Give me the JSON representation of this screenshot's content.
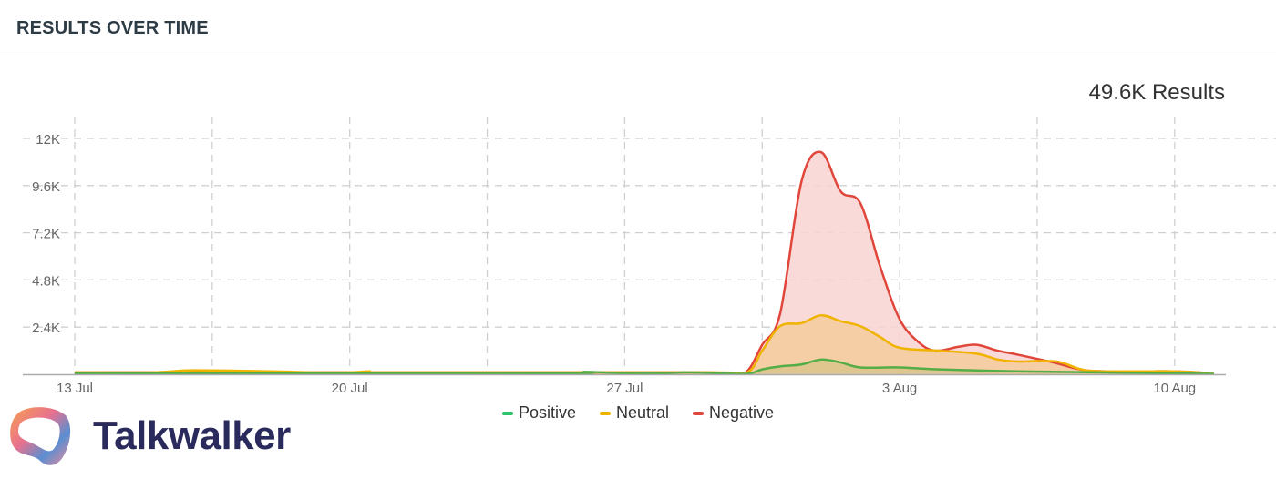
{
  "header": {
    "title": "RESULTS OVER TIME"
  },
  "total_results": "49.6K Results",
  "logo": {
    "text": "Talkwalker"
  },
  "chart_data": {
    "type": "area",
    "title": "",
    "xlabel": "",
    "ylabel": "",
    "x_ticks": [
      "13 Jul",
      "20 Jul",
      "27 Jul",
      "3 Aug",
      "10 Aug"
    ],
    "y_ticks": [
      "2.4K",
      "4.8K",
      "7.2K",
      "9.6K",
      "12K"
    ],
    "y_tick_values": [
      2400,
      4800,
      7200,
      9600,
      12000
    ],
    "ylim": [
      0,
      12000
    ],
    "xlim": [
      "Jul 13 00:00",
      "Aug 11 12:00"
    ],
    "grid": true,
    "legend_position": "bottom",
    "series": [
      {
        "name": "Negative",
        "color": "#e1463b",
        "fill": "#f8d3d1",
        "points": [
          [
            "Jul 13 00:00",
            100
          ],
          [
            "Jul 15 00:00",
            100
          ],
          [
            "Jul 16 00:00",
            150
          ],
          [
            "Jul 18 00:00",
            100
          ],
          [
            "Jul 22 00:00",
            100
          ],
          [
            "Jul 26 00:00",
            100
          ],
          [
            "Jul 29 00:00",
            100
          ],
          [
            "Jul 29 12:00",
            60
          ],
          [
            "Jul 30 02:00",
            100
          ],
          [
            "Jul 30 12:00",
            1500
          ],
          [
            "Jul 30 23:00",
            3100
          ],
          [
            "Jul 31 12:00",
            9800
          ],
          [
            "Aug 1 00:00",
            11300
          ],
          [
            "Aug 1 12:00",
            9300
          ],
          [
            "Aug 2 00:00",
            8700
          ],
          [
            "Aug 2 12:00",
            5500
          ],
          [
            "Aug 3 00:00",
            2800
          ],
          [
            "Aug 3 12:00",
            1600
          ],
          [
            "Aug 3 22:00",
            1200
          ],
          [
            "Aug 4 12:00",
            1400
          ],
          [
            "Aug 4 23:00",
            1500
          ],
          [
            "Aug 5 12:00",
            1200
          ],
          [
            "Aug 6 00:00",
            1000
          ],
          [
            "Aug 6 22:00",
            600
          ],
          [
            "Aug 7 18:00",
            200
          ],
          [
            "Aug 9 00:00",
            150
          ],
          [
            "Aug 10 00:00",
            150
          ],
          [
            "Aug 11 00:00",
            50
          ]
        ]
      },
      {
        "name": "Neutral",
        "color": "#efb300",
        "fill": "#f6cb9c",
        "points": [
          [
            "Jul 13 00:00",
            100
          ],
          [
            "Jul 15 00:00",
            100
          ],
          [
            "Jul 16 00:00",
            200
          ],
          [
            "Jul 18 00:00",
            150
          ],
          [
            "Jul 19 00:00",
            100
          ],
          [
            "Jul 20 00:00",
            100
          ],
          [
            "Jul 20 12:00",
            150
          ],
          [
            "Jul 21 00:00",
            100
          ],
          [
            "Jul 29 00:00",
            100
          ],
          [
            "Jul 30 02:00",
            60
          ],
          [
            "Jul 30 12:00",
            1200
          ],
          [
            "Jul 30 23:00",
            2450
          ],
          [
            "Jul 31 12:00",
            2600
          ],
          [
            "Aug 1 00:00",
            3000
          ],
          [
            "Aug 1 12:00",
            2700
          ],
          [
            "Aug 2 00:00",
            2450
          ],
          [
            "Aug 2 12:00",
            1900
          ],
          [
            "Aug 3 00:00",
            1350
          ],
          [
            "Aug 4 00:00",
            1200
          ],
          [
            "Aug 4 23:00",
            1050
          ],
          [
            "Aug 5 12:00",
            750
          ],
          [
            "Aug 6 00:00",
            650
          ],
          [
            "Aug 7 00:00",
            650
          ],
          [
            "Aug 7 18:00",
            200
          ],
          [
            "Aug 9 00:00",
            150
          ],
          [
            "Aug 10 00:00",
            150
          ],
          [
            "Aug 11 00:00",
            50
          ]
        ]
      },
      {
        "name": "Positive",
        "color": "#55ad47",
        "fill": "#d9c48a",
        "points": [
          [
            "Jul 13 00:00",
            50
          ],
          [
            "Jul 25 00:00",
            50
          ],
          [
            "Jul 26 00:00",
            120
          ],
          [
            "Jul 27 00:00",
            50
          ],
          [
            "Jul 28 00:00",
            50
          ],
          [
            "Jul 28 12:00",
            100
          ],
          [
            "Jul 29 00:00",
            80
          ],
          [
            "Jul 30 02:00",
            20
          ],
          [
            "Jul 30 12:00",
            250
          ],
          [
            "Jul 30 23:00",
            400
          ],
          [
            "Jul 31 12:00",
            500
          ],
          [
            "Aug 1 00:00",
            750
          ],
          [
            "Aug 1 12:00",
            600
          ],
          [
            "Aug 2 00:00",
            350
          ],
          [
            "Aug 3 00:00",
            350
          ],
          [
            "Aug 4 00:00",
            250
          ],
          [
            "Aug 6 00:00",
            150
          ],
          [
            "Aug 8 00:00",
            100
          ],
          [
            "Aug 11 00:00",
            20
          ]
        ]
      }
    ]
  },
  "legend": [
    {
      "label": "Positive",
      "color": "#2ec46b"
    },
    {
      "label": "Neutral",
      "color": "#efb300"
    },
    {
      "label": "Negative",
      "color": "#e1463b"
    }
  ]
}
